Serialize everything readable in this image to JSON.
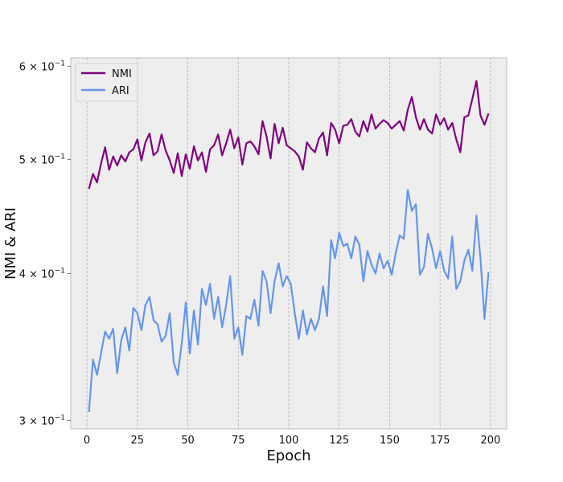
{
  "chart_data": {
    "type": "line",
    "title": "",
    "xlabel": "Epoch",
    "ylabel": "NMI & ARI",
    "xlim": [
      -8,
      208
    ],
    "ylim": [
      0.295,
      0.61
    ],
    "yscale": "log",
    "grid": true,
    "legend_position": "top-left",
    "x_ticks": [
      {
        "value": 0,
        "label": "0"
      },
      {
        "value": 25,
        "label": "25"
      },
      {
        "value": 50,
        "label": "50"
      },
      {
        "value": 75,
        "label": "75"
      },
      {
        "value": 100,
        "label": "100"
      },
      {
        "value": 125,
        "label": "125"
      },
      {
        "value": 150,
        "label": "150"
      },
      {
        "value": 175,
        "label": "175"
      },
      {
        "value": 200,
        "label": "200"
      }
    ],
    "y_ticks": [
      {
        "value": 0.3,
        "base": "3 × 10",
        "exp": "−1"
      },
      {
        "value": 0.4,
        "base": "4 × 10",
        "exp": "−1"
      },
      {
        "value": 0.5,
        "base": "5 × 10",
        "exp": "−1"
      },
      {
        "value": 0.6,
        "base": "6 × 10",
        "exp": "−1"
      }
    ],
    "series": [
      {
        "name": "NMI",
        "color": "#800080",
        "x": [
          1,
          3,
          5,
          7,
          9,
          11,
          13,
          15,
          17,
          19,
          21,
          23,
          25,
          27,
          29,
          31,
          33,
          35,
          37,
          39,
          41,
          43,
          45,
          47,
          49,
          51,
          53,
          55,
          57,
          59,
          61,
          63,
          65,
          67,
          69,
          71,
          73,
          75,
          77,
          79,
          81,
          83,
          85,
          87,
          89,
          91,
          93,
          95,
          97,
          99,
          101,
          103,
          105,
          107,
          109,
          111,
          113,
          115,
          117,
          119,
          121,
          123,
          125,
          127,
          129,
          131,
          133,
          135,
          137,
          139,
          141,
          143,
          145,
          147,
          149,
          151,
          153,
          155,
          157,
          159,
          161,
          163,
          165,
          167,
          169,
          171,
          173,
          175,
          177,
          179,
          181,
          183,
          185,
          187,
          189,
          191,
          193,
          195,
          197,
          199
        ],
        "y": [
          0.472,
          0.486,
          0.478,
          0.496,
          0.512,
          0.49,
          0.503,
          0.494,
          0.504,
          0.498,
          0.507,
          0.51,
          0.52,
          0.499,
          0.517,
          0.526,
          0.504,
          0.508,
          0.525,
          0.509,
          0.499,
          0.487,
          0.506,
          0.484,
          0.505,
          0.491,
          0.513,
          0.499,
          0.507,
          0.488,
          0.51,
          0.514,
          0.525,
          0.504,
          0.516,
          0.53,
          0.511,
          0.522,
          0.495,
          0.516,
          0.518,
          0.513,
          0.505,
          0.539,
          0.523,
          0.501,
          0.536,
          0.516,
          0.532,
          0.514,
          0.511,
          0.508,
          0.503,
          0.49,
          0.517,
          0.511,
          0.507,
          0.521,
          0.527,
          0.504,
          0.537,
          0.53,
          0.516,
          0.534,
          0.535,
          0.541,
          0.528,
          0.523,
          0.539,
          0.528,
          0.546,
          0.531,
          0.536,
          0.54,
          0.537,
          0.531,
          0.535,
          0.539,
          0.529,
          0.551,
          0.565,
          0.543,
          0.53,
          0.541,
          0.53,
          0.526,
          0.546,
          0.535,
          0.542,
          0.53,
          0.537,
          0.52,
          0.507,
          0.543,
          0.545,
          0.563,
          0.583,
          0.545,
          0.535,
          0.547
        ]
      },
      {
        "name": "ARI",
        "color": "#6495ED",
        "x": [
          1,
          3,
          5,
          7,
          9,
          11,
          13,
          15,
          17,
          19,
          21,
          23,
          25,
          27,
          29,
          31,
          33,
          35,
          37,
          39,
          41,
          43,
          45,
          47,
          49,
          51,
          53,
          55,
          57,
          59,
          61,
          63,
          65,
          67,
          69,
          71,
          73,
          75,
          77,
          79,
          81,
          83,
          85,
          87,
          89,
          91,
          93,
          95,
          97,
          99,
          101,
          103,
          105,
          107,
          109,
          111,
          113,
          115,
          117,
          119,
          121,
          123,
          125,
          127,
          129,
          131,
          133,
          135,
          137,
          139,
          141,
          143,
          145,
          147,
          149,
          151,
          153,
          155,
          157,
          159,
          161,
          163,
          165,
          167,
          169,
          171,
          173,
          175,
          177,
          179,
          181,
          183,
          185,
          187,
          189,
          191,
          193,
          195,
          197,
          199
        ],
        "y": [
          0.305,
          0.338,
          0.328,
          0.342,
          0.357,
          0.352,
          0.359,
          0.329,
          0.351,
          0.36,
          0.344,
          0.374,
          0.37,
          0.358,
          0.376,
          0.382,
          0.365,
          0.362,
          0.35,
          0.354,
          0.37,
          0.336,
          0.328,
          0.349,
          0.378,
          0.342,
          0.372,
          0.348,
          0.388,
          0.376,
          0.392,
          0.366,
          0.382,
          0.36,
          0.376,
          0.398,
          0.352,
          0.36,
          0.341,
          0.368,
          0.366,
          0.38,
          0.361,
          0.402,
          0.394,
          0.37,
          0.394,
          0.408,
          0.39,
          0.398,
          0.392,
          0.37,
          0.352,
          0.372,
          0.355,
          0.366,
          0.358,
          0.366,
          0.39,
          0.368,
          0.427,
          0.412,
          0.433,
          0.422,
          0.424,
          0.412,
          0.43,
          0.423,
          0.394,
          0.418,
          0.407,
          0.4,
          0.416,
          0.404,
          0.41,
          0.399,
          0.416,
          0.431,
          0.428,
          0.471,
          0.452,
          0.458,
          0.399,
          0.405,
          0.432,
          0.42,
          0.404,
          0.418,
          0.402,
          0.396,
          0.43,
          0.388,
          0.394,
          0.41,
          0.419,
          0.402,
          0.448,
          0.412,
          0.366,
          0.401
        ]
      }
    ]
  }
}
